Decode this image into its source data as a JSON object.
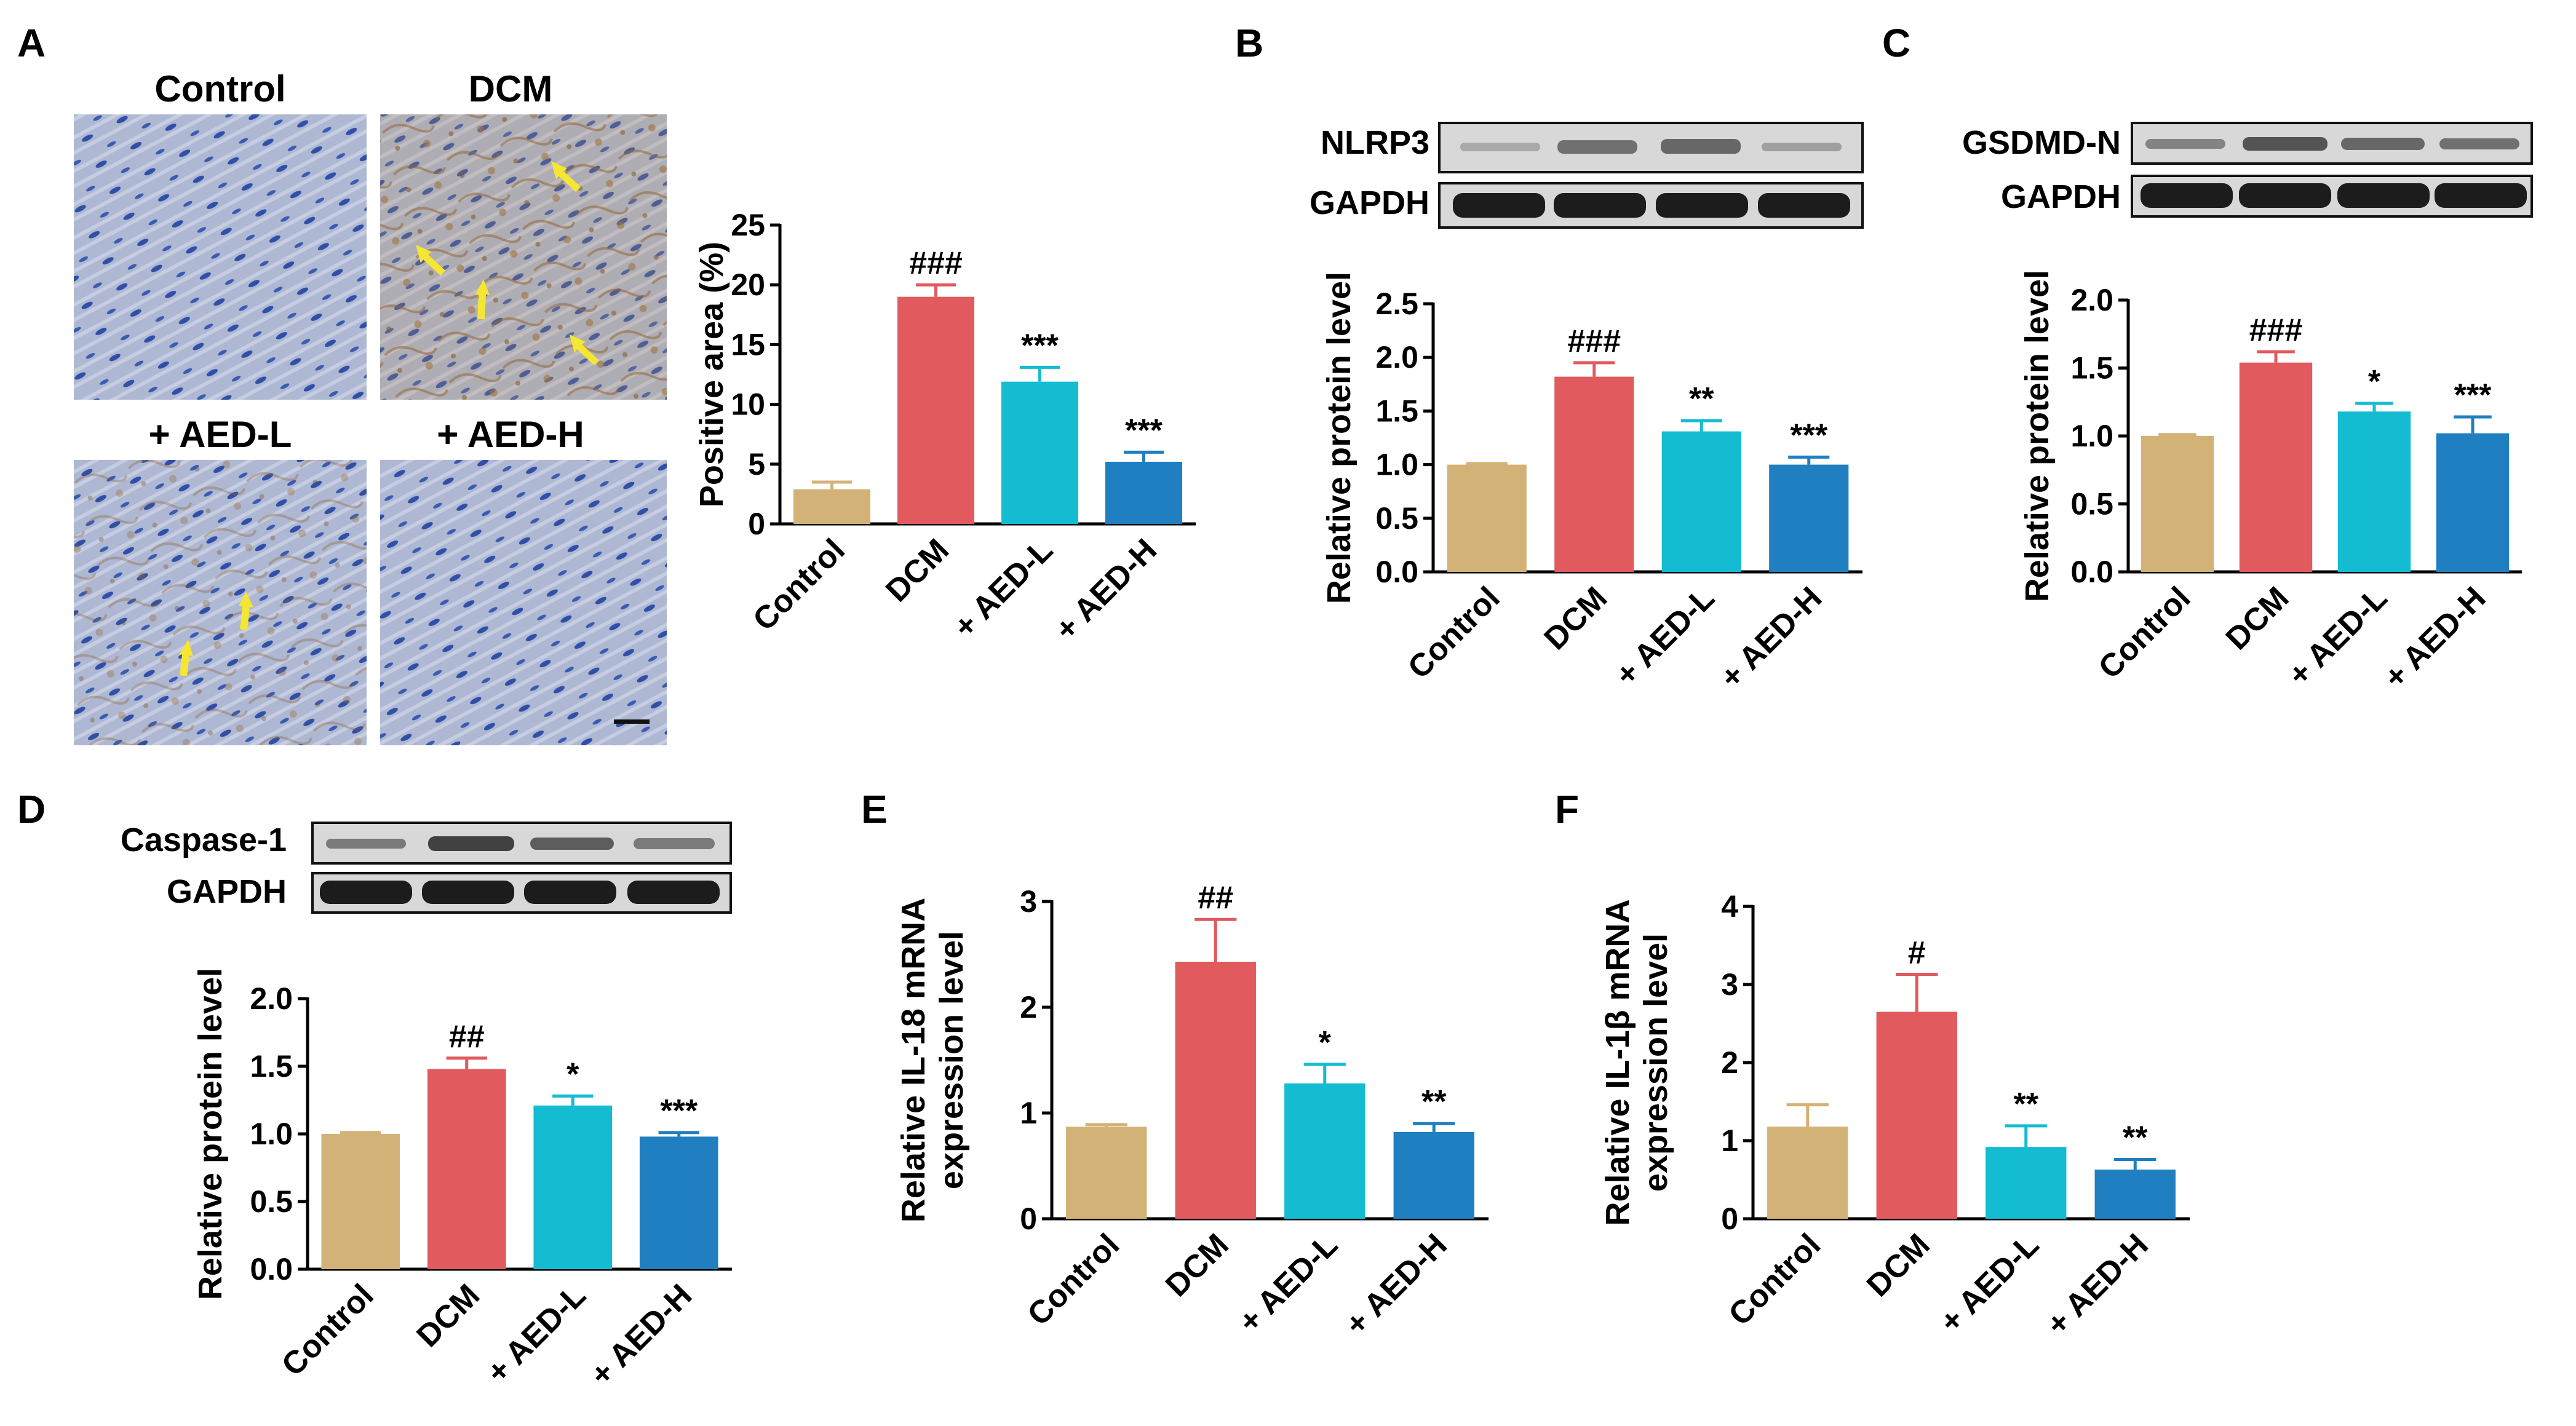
{
  "colors": {
    "Control": "#d2b276",
    "DCM": "#e05a5e",
    "AED-L": "#14bcd2",
    "AED-H": "#1f7fc0",
    "error_Control": "#d2b276",
    "error_DCM": "#e05a5e",
    "error_AED-L": "#14bcd2",
    "error_AED-H": "#1f7fc0",
    "arrow": "#f5e633",
    "micro_bg": "#aeb8d2",
    "blot": "#1c1c1c"
  },
  "micrograph": {
    "panel": "A",
    "labels": [
      "Control",
      "DCM",
      "+ AED-L",
      "+ AED-H"
    ]
  },
  "blots": [
    {
      "panel": "B",
      "target": "NLRP3",
      "loading": "GAPDH"
    },
    {
      "panel": "C",
      "target": "GSDMD-N",
      "loading": "GAPDH"
    },
    {
      "panel": "D",
      "target": "Caspase-1",
      "loading": "GAPDH"
    }
  ],
  "chart_data": [
    {
      "panel": "A",
      "type": "bar",
      "categories": [
        "Control",
        "DCM",
        "+ AED-L",
        "+ AED-H"
      ],
      "values": [
        2.9,
        19.0,
        11.9,
        5.2
      ],
      "errors": [
        0.6,
        1.0,
        1.2,
        0.8
      ],
      "significance": [
        "",
        "###",
        "***",
        "***"
      ],
      "ylabel": "Positive area (%)",
      "ylim": [
        0,
        25
      ],
      "yticks": [
        0,
        5,
        10,
        15,
        20,
        25
      ],
      "ytick_labels": [
        "0",
        "5",
        "10",
        "15",
        "20",
        "25"
      ]
    },
    {
      "panel": "B",
      "type": "bar",
      "categories": [
        "Control",
        "DCM",
        "+ AED-L",
        "+ AED-H"
      ],
      "values": [
        1.0,
        1.82,
        1.31,
        1.0
      ],
      "errors": [
        0.01,
        0.13,
        0.1,
        0.07
      ],
      "significance": [
        "",
        "###",
        "**",
        "***"
      ],
      "ylabel": "Relative protein level",
      "ylim": [
        0,
        2.5
      ],
      "yticks": [
        0,
        0.5,
        1.0,
        1.5,
        2.0,
        2.5
      ],
      "ytick_labels": [
        "0.0",
        "0.5",
        "1.0",
        "1.5",
        "2.0",
        "2.5"
      ]
    },
    {
      "panel": "C",
      "type": "bar",
      "categories": [
        "Control",
        "DCM",
        "+ AED-L",
        "+ AED-H"
      ],
      "values": [
        1.0,
        1.54,
        1.18,
        1.02
      ],
      "errors": [
        0.01,
        0.08,
        0.06,
        0.12
      ],
      "significance": [
        "",
        "###",
        "*",
        "***"
      ],
      "ylabel": "Relative protein level",
      "ylim": [
        0,
        2.0
      ],
      "yticks": [
        0,
        0.5,
        1.0,
        1.5,
        2.0
      ],
      "ytick_labels": [
        "0.0",
        "0.5",
        "1.0",
        "1.5",
        "2.0"
      ]
    },
    {
      "panel": "D",
      "type": "bar",
      "categories": [
        "Control",
        "DCM",
        "+ AED-L",
        "+ AED-H"
      ],
      "values": [
        1.0,
        1.48,
        1.21,
        0.98
      ],
      "errors": [
        0.01,
        0.08,
        0.07,
        0.03
      ],
      "significance": [
        "",
        "##",
        "*",
        "***"
      ],
      "ylabel": "Relative protein level",
      "ylim": [
        0,
        2.0
      ],
      "yticks": [
        0,
        0.5,
        1.0,
        1.5,
        2.0
      ],
      "ytick_labels": [
        "0.0",
        "0.5",
        "1.0",
        "1.5",
        "2.0"
      ]
    },
    {
      "panel": "E",
      "type": "bar",
      "categories": [
        "Control",
        "DCM",
        "+ AED-L",
        "+ AED-H"
      ],
      "values": [
        0.87,
        2.43,
        1.28,
        0.82
      ],
      "errors": [
        0.02,
        0.4,
        0.18,
        0.08
      ],
      "significance": [
        "",
        "##",
        "*",
        "**"
      ],
      "ylabel_lines": [
        "Relative IL-18 mRNA",
        "expression level"
      ],
      "ylim": [
        0,
        3
      ],
      "yticks": [
        0,
        1,
        2,
        3
      ],
      "ytick_labels": [
        "0",
        "1",
        "2",
        "3"
      ]
    },
    {
      "panel": "F",
      "type": "bar",
      "categories": [
        "Control",
        "DCM",
        "+ AED-L",
        "+ AED-H"
      ],
      "values": [
        1.18,
        2.65,
        0.92,
        0.63
      ],
      "errors": [
        0.28,
        0.48,
        0.27,
        0.13
      ],
      "significance": [
        "",
        "#",
        "**",
        "**"
      ],
      "ylabel_lines": [
        "Relative IL-1β mRNA",
        "expression level"
      ],
      "ylim": [
        0,
        4
      ],
      "yticks": [
        0,
        1,
        2,
        3,
        4
      ],
      "ytick_labels": [
        "0",
        "1",
        "2",
        "3",
        "4"
      ]
    }
  ]
}
